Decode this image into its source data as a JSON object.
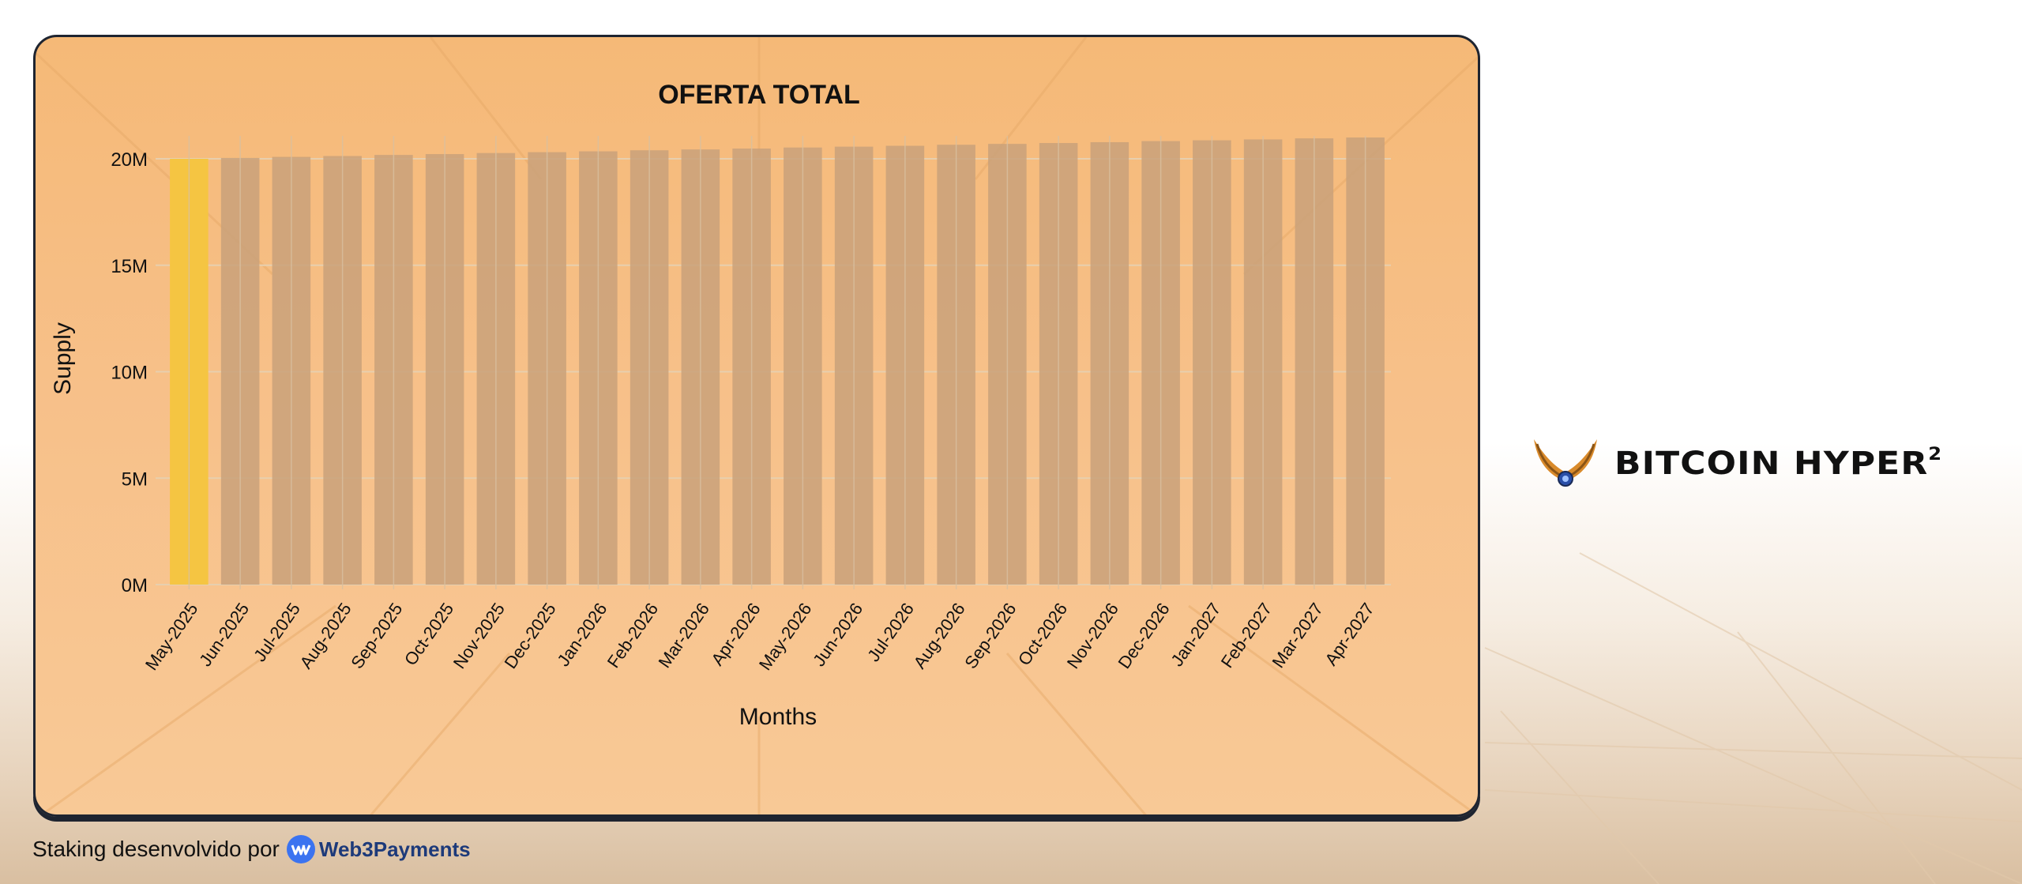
{
  "footer": {
    "prefix": "Staking desenvolvido por",
    "brand": "Web3Payments"
  },
  "logo": {
    "name": "BITCOIN HYPER",
    "sup": "2",
    "icon": "wings-icon"
  },
  "colors": {
    "highlight_bar": "#f5c542",
    "bar": "#c9a17a",
    "card_border": "#1e2430"
  },
  "chart_data": {
    "type": "bar",
    "title": "OFERTA TOTAL",
    "xlabel": "Months",
    "ylabel": "Supply",
    "ylim": [
      0,
      21000000
    ],
    "yticks": [
      0,
      5000000,
      10000000,
      15000000,
      20000000
    ],
    "ytick_labels": [
      "0M",
      "5M",
      "10M",
      "15M",
      "20M"
    ],
    "grid": true,
    "highlight_index": 0,
    "categories": [
      "May-2025",
      "Jun-2025",
      "Jul-2025",
      "Aug-2025",
      "Sep-2025",
      "Oct-2025",
      "Nov-2025",
      "Dec-2025",
      "Jan-2026",
      "Feb-2026",
      "Mar-2026",
      "Apr-2026",
      "May-2026",
      "Jun-2026",
      "Jul-2026",
      "Aug-2026",
      "Sep-2026",
      "Oct-2026",
      "Nov-2026",
      "Dec-2026",
      "Jan-2027",
      "Feb-2027",
      "Mar-2027",
      "Apr-2027"
    ],
    "values": [
      20000000,
      20040000,
      20090000,
      20130000,
      20180000,
      20220000,
      20270000,
      20310000,
      20350000,
      20400000,
      20440000,
      20480000,
      20530000,
      20570000,
      20610000,
      20660000,
      20700000,
      20740000,
      20780000,
      20830000,
      20870000,
      20910000,
      20960000,
      21000000
    ]
  }
}
